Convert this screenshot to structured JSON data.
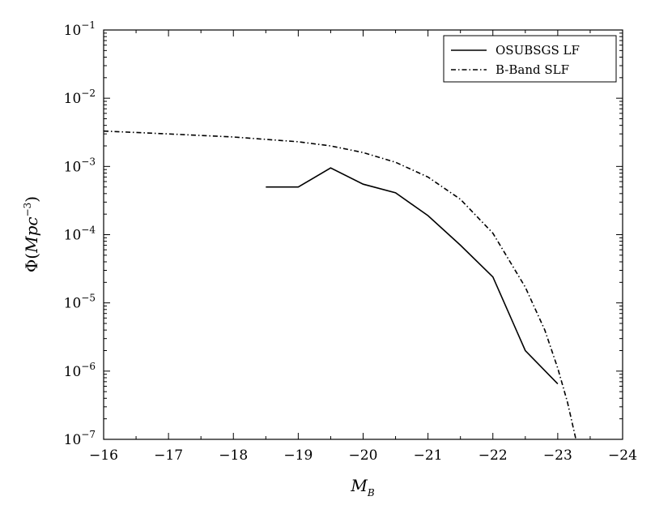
{
  "chart_data": {
    "type": "line",
    "title": "",
    "xlabel": {
      "base": "M",
      "sub": "B"
    },
    "ylabel": {
      "prefix": "Φ(",
      "italic": "Mpc",
      "sup": "−3",
      "suffix": ")"
    },
    "xlim": [
      -16,
      -24
    ],
    "ylim": [
      1e-07,
      0.1
    ],
    "yscale": "log",
    "grid": false,
    "legend_position": "top-right",
    "x_ticks": [
      {
        "value": -16,
        "label": "−16"
      },
      {
        "value": -17,
        "label": "−17"
      },
      {
        "value": -18,
        "label": "−18"
      },
      {
        "value": -19,
        "label": "−19"
      },
      {
        "value": -20,
        "label": "−20"
      },
      {
        "value": -21,
        "label": "−21"
      },
      {
        "value": -22,
        "label": "−22"
      },
      {
        "value": -23,
        "label": "−23"
      },
      {
        "value": -24,
        "label": "−24"
      }
    ],
    "y_ticks": [
      {
        "exp": -7,
        "base": "10",
        "sup": "−7"
      },
      {
        "exp": -6,
        "base": "10",
        "sup": "−6"
      },
      {
        "exp": -5,
        "base": "10",
        "sup": "−5"
      },
      {
        "exp": -4,
        "base": "10",
        "sup": "−4"
      },
      {
        "exp": -3,
        "base": "10",
        "sup": "−3"
      },
      {
        "exp": -2,
        "base": "10",
        "sup": "−2"
      },
      {
        "exp": -1,
        "base": "10",
        "sup": "−1"
      }
    ],
    "series": [
      {
        "name": "OSUBSGS LF",
        "style": "solid",
        "color": "#000000",
        "points": [
          [
            -18.5,
            0.0005
          ],
          [
            -19.0,
            0.0005
          ],
          [
            -19.5,
            0.00095
          ],
          [
            -20.0,
            0.00055
          ],
          [
            -20.5,
            0.00041
          ],
          [
            -21.0,
            0.00019
          ],
          [
            -21.5,
            7e-05
          ],
          [
            -22.0,
            2.4e-05
          ],
          [
            -22.5,
            2e-06
          ],
          [
            -23.0,
            6.5e-07
          ]
        ]
      },
      {
        "name": "B-Band SLF",
        "style": "dashdot",
        "color": "#000000",
        "points": [
          [
            -16.0,
            0.0033
          ],
          [
            -17.0,
            0.003
          ],
          [
            -18.0,
            0.0027
          ],
          [
            -19.0,
            0.0023
          ],
          [
            -19.5,
            0.002
          ],
          [
            -20.0,
            0.0016
          ],
          [
            -20.5,
            0.00115
          ],
          [
            -21.0,
            0.0007
          ],
          [
            -21.5,
            0.00033
          ],
          [
            -22.0,
            0.000105
          ],
          [
            -22.5,
            1.7e-05
          ],
          [
            -22.8,
            4e-06
          ],
          [
            -23.0,
            1.1e-06
          ],
          [
            -23.15,
            3.5e-07
          ],
          [
            -23.28,
            1e-07
          ]
        ]
      }
    ]
  }
}
